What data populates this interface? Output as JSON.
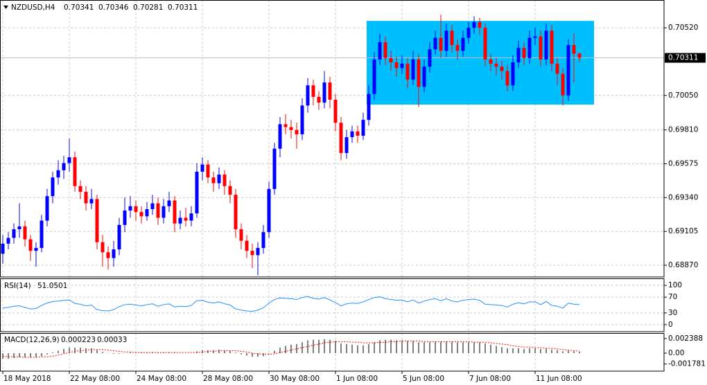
{
  "chart_data": [
    {
      "type": "candlestick",
      "title": "NZDUSD,H4",
      "categories": [
        "18 May 2018",
        null,
        null,
        null,
        null,
        null,
        null,
        null,
        null,
        null,
        null,
        null,
        "22 May 08:00",
        null,
        null,
        null,
        null,
        null,
        null,
        null,
        null,
        null,
        null,
        null,
        "24 May 08:00",
        null,
        null,
        null,
        null,
        null,
        null,
        null,
        null,
        null,
        null,
        null,
        "28 May 08:00",
        null,
        null,
        null,
        null,
        null,
        null,
        null,
        null,
        null,
        null,
        null,
        "30 May 08:00",
        null,
        null,
        null,
        null,
        null,
        null,
        null,
        null,
        null,
        null,
        null,
        "1 Jun 08:00",
        null,
        null,
        null,
        null,
        null,
        null,
        null,
        null,
        null,
        null,
        null,
        "5 Jun 08:00",
        null,
        null,
        null,
        null,
        null,
        null,
        null,
        null,
        null,
        null,
        null,
        "7 Jun 08:00",
        null,
        null,
        null,
        null,
        null,
        null,
        null,
        null,
        null,
        null,
        null,
        "11 Jun 08:00",
        null,
        null,
        null,
        null,
        null,
        null,
        null,
        null
      ],
      "ohlc": [
        [
          0.6895,
          0.6908,
          0.6888,
          0.6902
        ],
        [
          0.6902,
          0.691,
          0.6898,
          0.6906
        ],
        [
          0.6906,
          0.6916,
          0.6902,
          0.6912
        ],
        [
          0.6912,
          0.693,
          0.6906,
          0.6914
        ],
        [
          0.6914,
          0.6918,
          0.69,
          0.6905
        ],
        [
          0.6905,
          0.6908,
          0.689,
          0.6897
        ],
        [
          0.6897,
          0.6903,
          0.6886,
          0.6899
        ],
        [
          0.6899,
          0.6922,
          0.6896,
          0.6918
        ],
        [
          0.6918,
          0.694,
          0.6914,
          0.6935
        ],
        [
          0.6935,
          0.6952,
          0.693,
          0.6948
        ],
        [
          0.6948,
          0.696,
          0.6943,
          0.6953
        ],
        [
          0.6953,
          0.6963,
          0.6947,
          0.6958
        ],
        [
          0.6958,
          0.6975,
          0.6952,
          0.6962
        ],
        [
          0.6962,
          0.6966,
          0.6938,
          0.6942
        ],
        [
          0.6942,
          0.6946,
          0.6933,
          0.6938
        ],
        [
          0.6938,
          0.6942,
          0.6925,
          0.693
        ],
        [
          0.693,
          0.694,
          0.6926,
          0.6933
        ],
        [
          0.6933,
          0.6936,
          0.6898,
          0.6903
        ],
        [
          0.6903,
          0.6908,
          0.6886,
          0.6896
        ],
        [
          0.6896,
          0.69,
          0.6884,
          0.6892
        ],
        [
          0.6892,
          0.6904,
          0.6886,
          0.6898
        ],
        [
          0.6898,
          0.692,
          0.6894,
          0.6915
        ],
        [
          0.6915,
          0.6934,
          0.691,
          0.6925
        ],
        [
          0.6925,
          0.6935,
          0.692,
          0.6928
        ],
        [
          0.6928,
          0.6932,
          0.6918,
          0.6924
        ],
        [
          0.6924,
          0.6928,
          0.6916,
          0.6921
        ],
        [
          0.6921,
          0.6931,
          0.6918,
          0.6926
        ],
        [
          0.6926,
          0.6936,
          0.6922,
          0.693
        ],
        [
          0.693,
          0.6934,
          0.6915,
          0.692
        ],
        [
          0.692,
          0.6933,
          0.6916,
          0.6928
        ],
        [
          0.6928,
          0.6938,
          0.6924,
          0.6932
        ],
        [
          0.6932,
          0.6935,
          0.691,
          0.6916
        ],
        [
          0.6916,
          0.6925,
          0.6912,
          0.692
        ],
        [
          0.692,
          0.6927,
          0.6914,
          0.6918
        ],
        [
          0.6918,
          0.6928,
          0.6914,
          0.6923
        ],
        [
          0.6923,
          0.6958,
          0.692,
          0.6952
        ],
        [
          0.6952,
          0.6962,
          0.6946,
          0.6957
        ],
        [
          0.6957,
          0.696,
          0.6944,
          0.6948
        ],
        [
          0.6948,
          0.6952,
          0.6938,
          0.6944
        ],
        [
          0.6944,
          0.6955,
          0.694,
          0.695
        ],
        [
          0.695,
          0.6953,
          0.6936,
          0.6942
        ],
        [
          0.6942,
          0.6946,
          0.693,
          0.6936
        ],
        [
          0.6936,
          0.694,
          0.6906,
          0.6912
        ],
        [
          0.6912,
          0.6916,
          0.6898,
          0.6904
        ],
        [
          0.6904,
          0.6908,
          0.6892,
          0.6897
        ],
        [
          0.6897,
          0.6902,
          0.6885,
          0.6894
        ],
        [
          0.6894,
          0.6903,
          0.688,
          0.6899
        ],
        [
          0.6899,
          0.6915,
          0.6895,
          0.691
        ],
        [
          0.691,
          0.6945,
          0.6906,
          0.694
        ],
        [
          0.694,
          0.6972,
          0.6936,
          0.6968
        ],
        [
          0.6968,
          0.699,
          0.6962,
          0.6985
        ],
        [
          0.6985,
          0.6992,
          0.6978,
          0.6983
        ],
        [
          0.6983,
          0.6988,
          0.6975,
          0.6981
        ],
        [
          0.6981,
          0.6986,
          0.6968,
          0.6978
        ],
        [
          0.6978,
          0.7003,
          0.6974,
          0.6998
        ],
        [
          0.6998,
          0.7017,
          0.6993,
          0.7012
        ],
        [
          0.7012,
          0.7016,
          0.6998,
          0.7004
        ],
        [
          0.7004,
          0.7008,
          0.6995,
          0.7
        ],
        [
          0.7,
          0.7022,
          0.6996,
          0.7014
        ],
        [
          0.7014,
          0.7018,
          0.6996,
          0.7002
        ],
        [
          0.7002,
          0.7006,
          0.698,
          0.6986
        ],
        [
          0.6986,
          0.699,
          0.696,
          0.6965
        ],
        [
          0.6965,
          0.6981,
          0.6961,
          0.6976
        ],
        [
          0.6976,
          0.6984,
          0.6972,
          0.698
        ],
        [
          0.698,
          0.6984,
          0.6972,
          0.6977
        ],
        [
          0.6977,
          0.6993,
          0.6974,
          0.6988
        ],
        [
          0.6988,
          0.7012,
          0.6984,
          0.7006
        ],
        [
          0.7006,
          0.7035,
          0.7002,
          0.703
        ],
        [
          0.703,
          0.7048,
          0.7026,
          0.7042
        ],
        [
          0.7042,
          0.7046,
          0.7026,
          0.7031
        ],
        [
          0.7031,
          0.7036,
          0.7022,
          0.7028
        ],
        [
          0.7028,
          0.7032,
          0.7018,
          0.7024
        ],
        [
          0.7024,
          0.7033,
          0.702,
          0.7027
        ],
        [
          0.7027,
          0.7031,
          0.701,
          0.7016
        ],
        [
          0.7016,
          0.7036,
          0.7012,
          0.703
        ],
        [
          0.703,
          0.7034,
          0.6997,
          0.7011
        ],
        [
          0.7011,
          0.703,
          0.7007,
          0.7025
        ],
        [
          0.7025,
          0.7042,
          0.7021,
          0.7037
        ],
        [
          0.7037,
          0.705,
          0.7033,
          0.7045
        ],
        [
          0.7045,
          0.7061,
          0.7031,
          0.7036
        ],
        [
          0.7036,
          0.7055,
          0.7032,
          0.705
        ],
        [
          0.705,
          0.7054,
          0.7035,
          0.704
        ],
        [
          0.704,
          0.7044,
          0.703,
          0.7036
        ],
        [
          0.7036,
          0.705,
          0.7032,
          0.7045
        ],
        [
          0.7045,
          0.7056,
          0.7041,
          0.7052
        ],
        [
          0.7052,
          0.706,
          0.7048,
          0.7056
        ],
        [
          0.7056,
          0.7059,
          0.7047,
          0.7052
        ],
        [
          0.7052,
          0.7055,
          0.7025,
          0.703
        ],
        [
          0.703,
          0.7034,
          0.7022,
          0.7027
        ],
        [
          0.7027,
          0.7031,
          0.7019,
          0.7025
        ],
        [
          0.7025,
          0.7029,
          0.7016,
          0.7022
        ],
        [
          0.7022,
          0.7026,
          0.7008,
          0.7012
        ],
        [
          0.7012,
          0.7033,
          0.7008,
          0.7028
        ],
        [
          0.7028,
          0.7043,
          0.7024,
          0.7038
        ],
        [
          0.7038,
          0.7042,
          0.7026,
          0.7031
        ],
        [
          0.7031,
          0.705,
          0.7027,
          0.7045
        ],
        [
          0.7045,
          0.7052,
          0.704,
          0.7046
        ],
        [
          0.7046,
          0.705,
          0.7025,
          0.703
        ],
        [
          0.703,
          0.7055,
          0.7026,
          0.705
        ],
        [
          0.705,
          0.7054,
          0.7022,
          0.7027
        ],
        [
          0.7027,
          0.7031,
          0.7012,
          0.702
        ],
        [
          0.702,
          0.7024,
          0.6998,
          0.7005
        ],
        [
          0.7005,
          0.7044,
          0.7001,
          0.704
        ],
        [
          0.704,
          0.7048,
          0.7014,
          0.7034
        ],
        [
          0.70341,
          0.70346,
          0.70281,
          0.70311
        ]
      ],
      "up_color": "#0000ff",
      "down_color": "#ff0000",
      "box": {
        "x": [
          66,
          107
        ],
        "y": [
          0.70568,
          0.69986
        ],
        "color": "#00bfff"
      },
      "ylim": [
        0.68798,
        0.70689
      ],
      "yticks": [
        {
          "value": 0.7052,
          "label": "0.70520"
        },
        {
          "value": 0.7005,
          "label": "0.70050"
        },
        {
          "value": 0.6981,
          "label": "0.69810"
        },
        0.69575,
        {
          "value": 0.6934,
          "label": "0.69340"
        },
        0.69105,
        {
          "value": 0.6887,
          "label": "0.68870"
        }
      ],
      "grid": true
    },
    {
      "type": "line",
      "title": "RSI(14)",
      "color": "#1e90ff",
      "values": [
        42,
        44,
        47,
        48,
        44,
        40,
        41,
        49,
        55,
        59,
        60,
        62,
        63,
        54,
        52,
        48,
        50,
        38,
        36,
        35,
        38,
        46,
        51,
        52,
        50,
        48,
        51,
        53,
        47,
        51,
        53,
        45,
        47,
        46,
        49,
        61,
        62,
        57,
        55,
        58,
        53,
        50,
        40,
        37,
        35,
        34,
        37,
        43,
        55,
        64,
        68,
        67,
        66,
        64,
        69,
        72,
        67,
        65,
        69,
        63,
        56,
        48,
        53,
        55,
        54,
        58,
        64,
        69,
        71,
        66,
        64,
        62,
        63,
        58,
        63,
        55,
        60,
        64,
        66,
        61,
        66,
        60,
        58,
        62,
        64,
        65,
        62,
        52,
        51,
        50,
        49,
        45,
        52,
        56,
        53,
        58,
        58,
        51,
        59,
        49,
        47,
        42,
        55,
        52,
        51.0501
      ],
      "ylim": [
        -16,
        116
      ],
      "yticks": [
        100,
        70,
        30,
        0
      ],
      "grid": true
    },
    {
      "type": "macd",
      "title": "MACD(12,26,9)",
      "color": "#000000",
      "signal_color": "#ff0000",
      "values": [
        -0.0009,
        -0.0009,
        -0.0008,
        -0.0007,
        -0.0007,
        -0.0007,
        -0.0007,
        -0.0005,
        -0.0002,
        0.0001,
        0.0004,
        0.0007,
        0.0009,
        0.0009,
        0.0009,
        0.0008,
        0.0008,
        0.0005,
        0.0002,
        0.0,
        -0.0001,
        -0.0001,
        0.0,
        0.0001,
        0.0001,
        0.0001,
        0.0001,
        0.0002,
        0.0001,
        0.0001,
        0.0002,
        0.0001,
        0.0,
        0.0,
        0.0,
        0.0003,
        0.0005,
        0.0005,
        0.0005,
        0.0006,
        0.0005,
        0.0004,
        0.0001,
        -0.0002,
        -0.0004,
        -0.0006,
        -0.0006,
        -0.0005,
        -0.0001,
        0.0004,
        0.0009,
        0.0012,
        0.0014,
        0.0015,
        0.0018,
        0.0021,
        0.0022,
        0.0022,
        0.0023,
        0.0022,
        0.002,
        0.0016,
        0.0015,
        0.0014,
        0.0013,
        0.0013,
        0.0015,
        0.0018,
        0.0021,
        0.0022,
        0.0022,
        0.0021,
        0.0021,
        0.002,
        0.002,
        0.0018,
        0.0018,
        0.0018,
        0.0019,
        0.0019,
        0.0019,
        0.0019,
        0.0018,
        0.0018,
        0.0018,
        0.0018,
        0.0018,
        0.0016,
        0.0014,
        0.0012,
        0.001,
        0.0008,
        0.0008,
        0.0008,
        0.0007,
        0.0008,
        0.0008,
        0.0007,
        0.0008,
        0.0006,
        0.0005,
        0.0003,
        0.0004,
        0.0003,
        0.000223
      ],
      "signal": [
        -0.0005,
        -0.0006,
        -0.0006,
        -0.0006,
        -0.0007,
        -0.0007,
        -0.0007,
        -0.0006,
        -0.0006,
        -0.0005,
        -0.0003,
        -0.0001,
        0.0001,
        0.0003,
        0.0004,
        0.0005,
        0.0006,
        0.0006,
        0.0006,
        0.0005,
        0.0004,
        0.0003,
        0.0002,
        0.0002,
        0.0001,
        0.0001,
        0.0001,
        0.0001,
        0.0001,
        0.0001,
        0.0001,
        0.0001,
        0.0001,
        0.0001,
        0.0001,
        0.0001,
        0.0002,
        0.0003,
        0.0003,
        0.0004,
        0.0004,
        0.0004,
        0.0004,
        0.0003,
        0.0002,
        0.0,
        -0.0001,
        -0.0002,
        -0.0002,
        -0.0001,
        0.0001,
        0.0003,
        0.0005,
        0.0007,
        0.0009,
        0.0011,
        0.0013,
        0.0015,
        0.0017,
        0.0018,
        0.0019,
        0.0019,
        0.0019,
        0.0018,
        0.0018,
        0.0017,
        0.0017,
        0.0017,
        0.0018,
        0.0018,
        0.0019,
        0.0019,
        0.002,
        0.002,
        0.002,
        0.002,
        0.0019,
        0.0019,
        0.0019,
        0.0019,
        0.0019,
        0.0019,
        0.0019,
        0.0019,
        0.0019,
        0.0018,
        0.0018,
        0.0018,
        0.0017,
        0.0016,
        0.0015,
        0.0014,
        0.0012,
        0.0011,
        0.001,
        0.001,
        0.0009,
        0.0009,
        0.0008,
        0.0008,
        0.0007,
        0.0006,
        0.0005,
        0.0004,
        0.00033
      ],
      "ylim": [
        -0.00284,
        0.0033
      ],
      "yticks": [
        0.002388,
        {
          "value": 0,
          "label": "0.00"
        },
        -0.001781
      ],
      "grid": false
    }
  ]
}
